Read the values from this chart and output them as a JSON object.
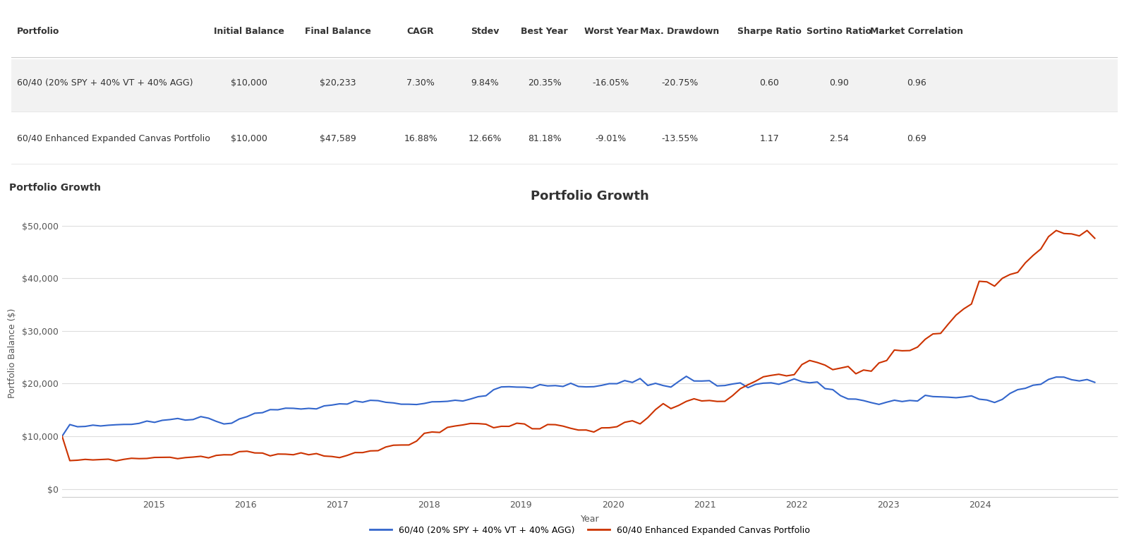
{
  "table": {
    "headers": [
      "Portfolio",
      "Initial Balance",
      "Final Balance",
      "CAGR",
      "Stdev",
      "Best Year",
      "Worst Year",
      "Max. Drawdown",
      "Sharpe Ratio",
      "Sortino Ratio",
      "Market Correlation"
    ],
    "rows": [
      {
        "name": "60/40 (20% SPY + 40% VT + 40% AGG)",
        "initial_balance": "$10,000",
        "final_balance": "$20,233",
        "cagr": "7.30%",
        "stdev": "9.84%",
        "best_year": "20.35%",
        "worst_year": "-16.05%",
        "max_drawdown": "-20.75%",
        "sharpe": "0.60",
        "sortino": "0.90",
        "market_corr": "0.96"
      },
      {
        "name": "60/40 Enhanced Expanded Canvas Portfolio",
        "initial_balance": "$10,000",
        "final_balance": "$47,589",
        "cagr": "16.88%",
        "stdev": "12.66%",
        "best_year": "81.18%",
        "worst_year": "-9.01%",
        "max_drawdown": "-13.55%",
        "sharpe": "1.17",
        "sortino": "2.54",
        "market_corr": "0.69"
      }
    ]
  },
  "chart": {
    "title": "Portfolio Growth",
    "xlabel": "Year",
    "ylabel": "Portfolio Balance ($)",
    "yticks": [
      0,
      10000,
      20000,
      30000,
      40000,
      50000
    ],
    "ytick_labels": [
      "$0",
      "$10,000",
      "$20,000",
      "$30,000",
      "$40,000",
      "$50,000"
    ],
    "xlim_start": 2014.0,
    "xlim_end": 2025.5,
    "ylim_bottom": -1500,
    "ylim_top": 53000,
    "line1_color": "#3366cc",
    "line2_color": "#cc3300",
    "line1_label": "60/40 (20% SPY + 40% VT + 40% AGG)",
    "line2_label": "60/40 Enhanced Expanded Canvas Portfolio",
    "xticks": [
      2015,
      2016,
      2017,
      2018,
      2019,
      2020,
      2021,
      2022,
      2023,
      2024
    ],
    "section_header_bg": "#e4e4e4",
    "table_row1_bg": "#f2f2f2",
    "background_color": "#ffffff",
    "grid_color": "#dddddd",
    "spine_color": "#cccccc"
  }
}
